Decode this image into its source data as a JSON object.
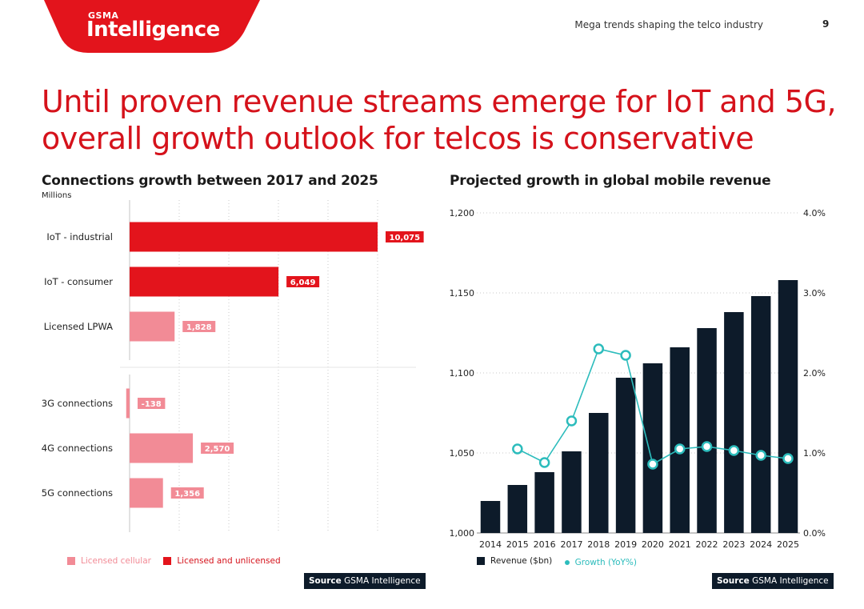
{
  "header": {
    "brand_top": "GSMA",
    "brand_name": "Intelligence",
    "section": "Mega trends shaping the telco industry",
    "page_number": "9"
  },
  "headline": {
    "line1": "Until proven revenue streams emerge for IoT and 5G,",
    "line2": "overall growth outlook for telcos is conservative"
  },
  "left": {
    "title": "Connections growth between 2017 and 2025",
    "units": "Millions",
    "legend": [
      {
        "label": "Licensed cellular",
        "color": "#f28b96"
      },
      {
        "label": "Licensed and unlicensed",
        "color": "#e3141c"
      }
    ],
    "source_label": "Source",
    "source_text": "GSMA Intelligence"
  },
  "right": {
    "title": "Projected growth in global mobile revenue",
    "legend": [
      {
        "label": "Revenue ($bn)",
        "color": "#0d1b2a"
      },
      {
        "label": "Growth (YoY%)",
        "color": "#2cbcbc"
      }
    ],
    "source_label": "Source",
    "source_text": "GSMA Intelligence"
  },
  "chart_data": [
    {
      "type": "bar",
      "orientation": "horizontal",
      "title": "Connections growth between 2017 and 2025",
      "ylabel": "Millions",
      "categories": [
        "IoT - industrial",
        "IoT - consumer",
        "Licensed LPWA",
        "3G connections",
        "4G connections",
        "5G connections"
      ],
      "values": [
        10075,
        6049,
        1828,
        -138,
        2570,
        1356
      ],
      "labels": [
        "10,075",
        "6,049",
        "1,828",
        "-138",
        "2,570",
        "1,356"
      ],
      "groups": [
        "Licensed and unlicensed",
        "Licensed and unlicensed",
        "Licensed cellular",
        "Licensed cellular",
        "Licensed cellular",
        "Licensed cellular"
      ],
      "colors": {
        "Licensed and unlicensed": "#e3141c",
        "Licensed cellular": "#f28b96"
      },
      "xlim": [
        -150,
        12000
      ]
    },
    {
      "type": "bar",
      "title": "Projected growth in global mobile revenue",
      "categories": [
        "2014",
        "2015",
        "2016",
        "2017",
        "2018",
        "2019",
        "2020",
        "2021",
        "2022",
        "2023",
        "2024",
        "2025"
      ],
      "series": [
        {
          "name": "Revenue ($bn)",
          "axis": "left",
          "type": "bar",
          "color": "#0d1b2a",
          "values": [
            1020,
            1030,
            1038,
            1051,
            1075,
            1097,
            1106,
            1116,
            1128,
            1138,
            1148,
            1158
          ]
        },
        {
          "name": "Growth (YoY%)",
          "axis": "right",
          "type": "line",
          "color": "#2cbcbc",
          "values": [
            null,
            1.05,
            0.88,
            1.4,
            2.3,
            2.22,
            0.86,
            1.05,
            1.08,
            1.03,
            0.97,
            0.93
          ]
        }
      ],
      "ylim_left": [
        1000,
        1200
      ],
      "yticks_left": [
        "1,000",
        "1,050",
        "1,100",
        "1,150",
        "1,200"
      ],
      "ylim_right": [
        0,
        4
      ],
      "yticks_right": [
        "0.0%",
        "1.0%",
        "2.0%",
        "3.0%",
        "4.0%"
      ]
    }
  ]
}
